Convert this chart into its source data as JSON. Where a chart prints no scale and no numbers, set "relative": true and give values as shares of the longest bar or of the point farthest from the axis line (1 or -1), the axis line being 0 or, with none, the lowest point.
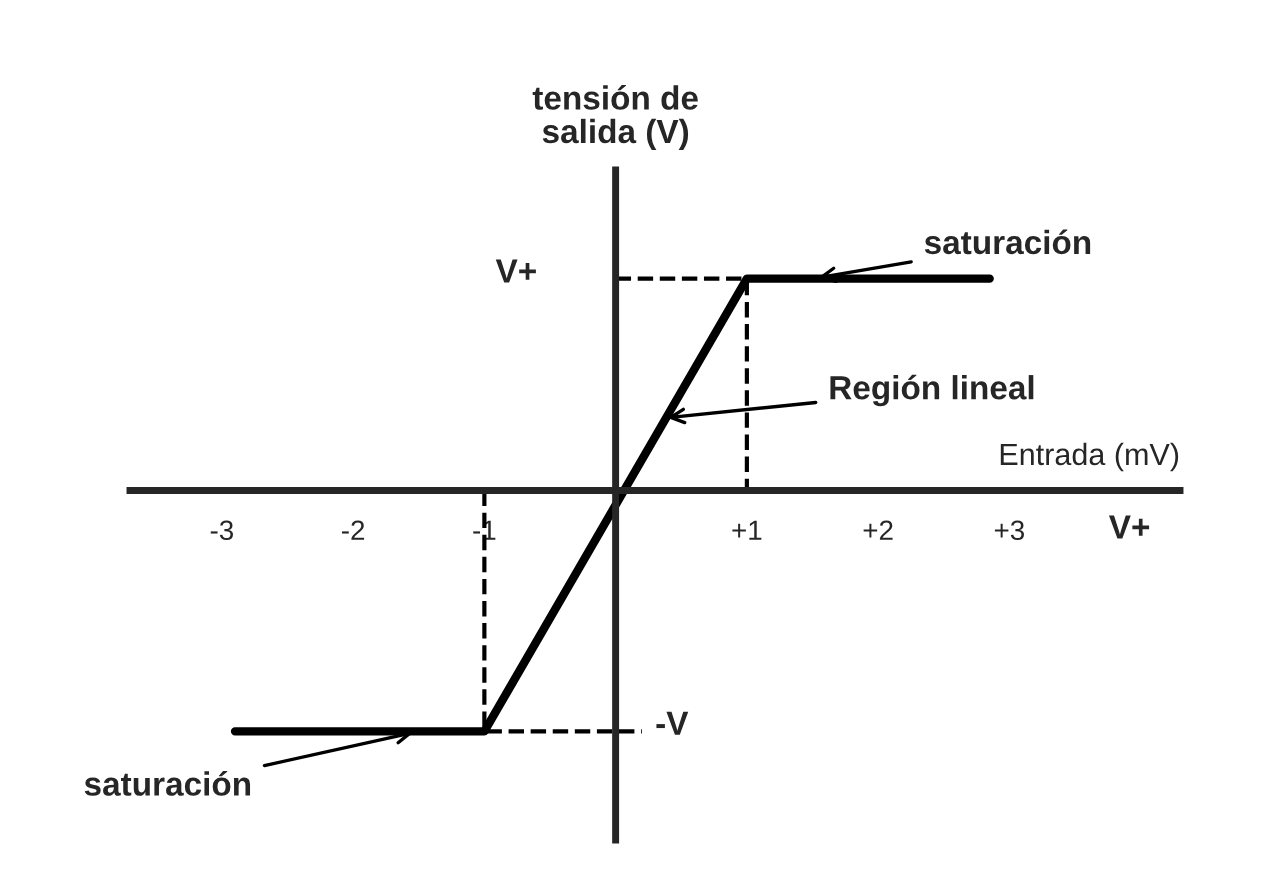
{
  "chart_data": {
    "type": "line",
    "relative": true,
    "xlabel": "Entrada (mV)",
    "ylabel": "tensión de\nsalida (V)",
    "xlim": [
      -3.7,
      4.3
    ],
    "xticks": [
      {
        "value": -3,
        "label": "-3"
      },
      {
        "value": -2,
        "label": "-2"
      },
      {
        "value": -1,
        "label": "-1"
      },
      {
        "value": 1,
        "label": "+1"
      },
      {
        "value": 2,
        "label": "+2"
      },
      {
        "value": 3,
        "label": "+3"
      }
    ],
    "series": [
      {
        "color": "#000000",
        "line_style": "solid",
        "x": [
          -2.9,
          -1,
          1,
          2.85
        ],
        "values": [
          -1,
          -1,
          0.88,
          0.88
        ]
      },
      {
        "color": "#000000",
        "line_style": "dashed",
        "x": [
          0,
          1,
          1
        ],
        "values": [
          0.88,
          0.88,
          0
        ]
      },
      {
        "color": "#000000",
        "line_style": "dashed",
        "x": [
          -1,
          -1,
          0.2
        ],
        "values": [
          0,
          -1,
          -1
        ]
      }
    ],
    "annotations": [
      "V+",
      "-V",
      "V+",
      {
        "text": "saturación",
        "x": 1.5,
        "y": 0.88
      },
      {
        "text": "Región lineal",
        "x": 0.35,
        "y": 0.3
      },
      {
        "text": "saturación",
        "x": -1.5,
        "y": -1
      }
    ],
    "grid": false
  }
}
